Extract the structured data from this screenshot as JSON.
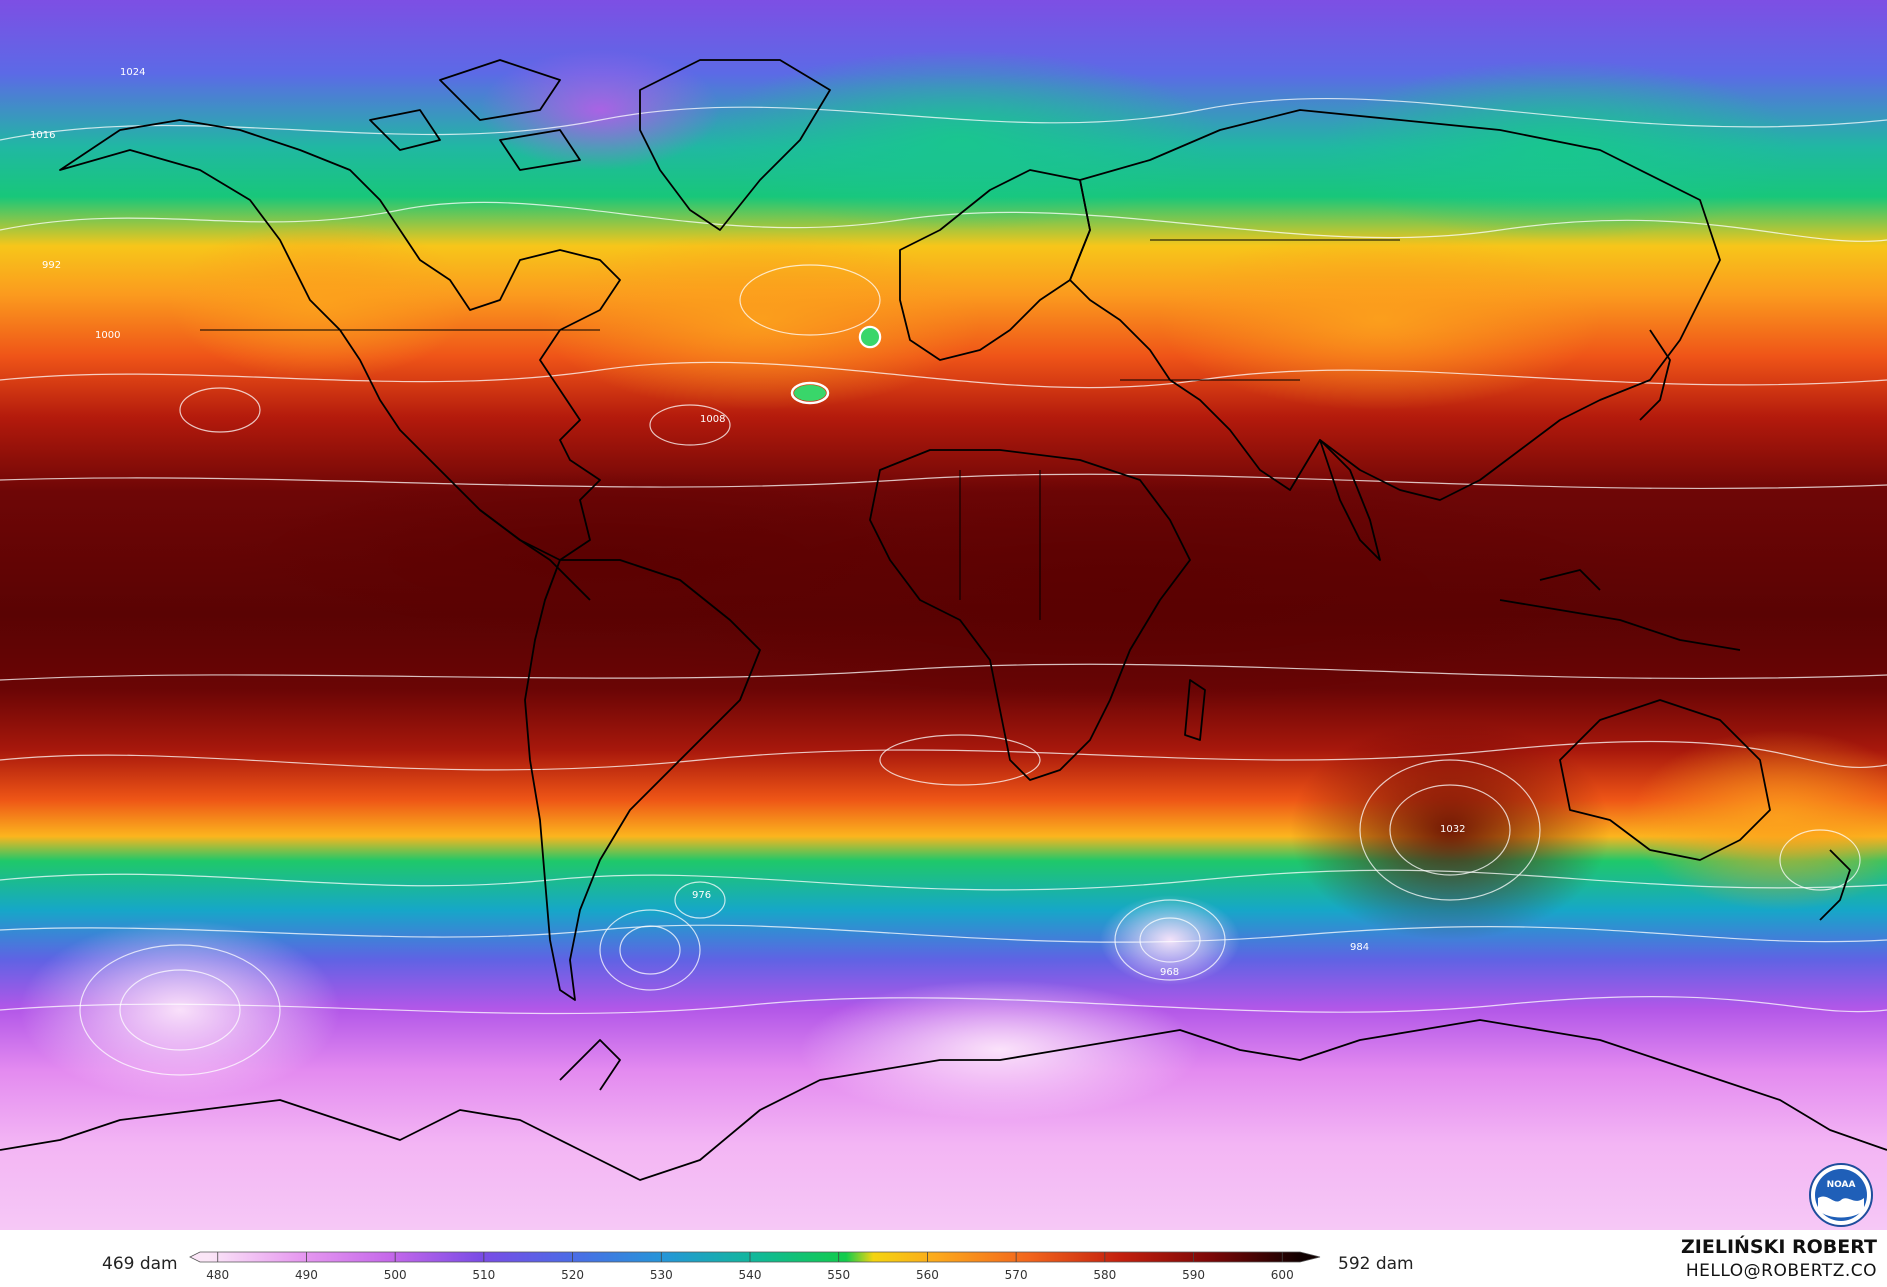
{
  "colorbar": {
    "min_label": "469 dam",
    "max_label": "592 dam",
    "ticks": [
      "480",
      "490",
      "500",
      "510",
      "520",
      "530",
      "540",
      "550",
      "560",
      "570",
      "580",
      "590",
      "600"
    ],
    "stops": [
      {
        "value": 480,
        "color": "#fbe6f7"
      },
      {
        "value": 490,
        "color": "#e79af0"
      },
      {
        "value": 500,
        "color": "#c568ea"
      },
      {
        "value": 510,
        "color": "#7a4ce6"
      },
      {
        "value": 520,
        "color": "#4b6ce6"
      },
      {
        "value": 530,
        "color": "#2596d8"
      },
      {
        "value": 540,
        "color": "#11b89a"
      },
      {
        "value": 550,
        "color": "#12cc4c"
      },
      {
        "value": 553,
        "color": "#f4d410"
      },
      {
        "value": 560,
        "color": "#fca81c"
      },
      {
        "value": 570,
        "color": "#f2651c"
      },
      {
        "value": 580,
        "color": "#c4200e"
      },
      {
        "value": 590,
        "color": "#7c0707"
      },
      {
        "value": 600,
        "color": "#100000"
      }
    ]
  },
  "isobar_labels": [
    "1024",
    "1016",
    "1008",
    "1000",
    "992",
    "984",
    "976",
    "968",
    "1032"
  ],
  "credit": {
    "name": "ZIELIŃSKI ROBERT",
    "email": "HELLO@ROBERTZ.CO"
  },
  "logo": {
    "text": "NOAA"
  },
  "colors": {
    "coastline": "#000000",
    "isobar": "#ffffff"
  }
}
